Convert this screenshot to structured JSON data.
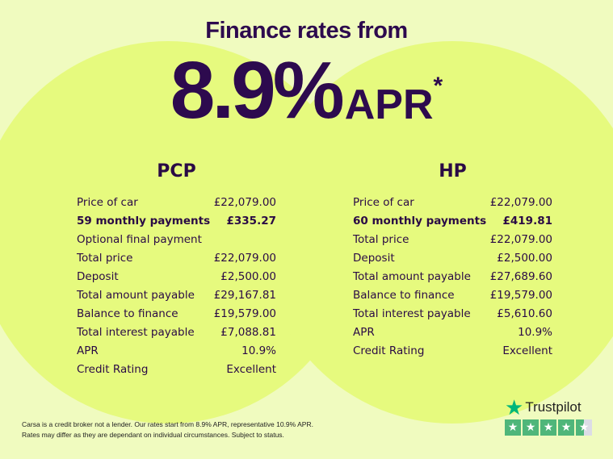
{
  "header": {
    "subtitle": "Finance rates from",
    "rate": "8.9%",
    "apr": "APR",
    "asterisk": "*"
  },
  "pcp": {
    "title": "PCP",
    "rows": [
      {
        "label": "Price of car",
        "value": "£22,079.00",
        "bold": false
      },
      {
        "label": "59 monthly payments",
        "value": "£335.27",
        "bold": true
      },
      {
        "label": "Optional final payment",
        "value": "",
        "bold": false
      },
      {
        "label": "Total price",
        "value": "£22,079.00",
        "bold": false
      },
      {
        "label": "Deposit",
        "value": "£2,500.00",
        "bold": false
      },
      {
        "label": "Total amount payable",
        "value": "£29,167.81",
        "bold": false
      },
      {
        "label": "Balance to finance",
        "value": "£19,579.00",
        "bold": false
      },
      {
        "label": "Total interest payable",
        "value": "£7,088.81",
        "bold": false
      },
      {
        "label": "APR",
        "value": "10.9%",
        "bold": false
      },
      {
        "label": "Credit Rating",
        "value": "Excellent",
        "bold": false
      }
    ]
  },
  "hp": {
    "title": "HP",
    "rows": [
      {
        "label": "Price of car",
        "value": "£22,079.00",
        "bold": false
      },
      {
        "label": "60 monthly payments",
        "value": "£419.81",
        "bold": true
      },
      {
        "label": "Total price",
        "value": "£22,079.00",
        "bold": false
      },
      {
        "label": "Deposit",
        "value": "£2,500.00",
        "bold": false
      },
      {
        "label": "Total amount payable",
        "value": "£27,689.60",
        "bold": false
      },
      {
        "label": "Balance to finance",
        "value": "£19,579.00",
        "bold": false
      },
      {
        "label": "Total interest payable",
        "value": "£5,610.60",
        "bold": false
      },
      {
        "label": "APR",
        "value": "10.9%",
        "bold": false
      },
      {
        "label": "Credit Rating",
        "value": "Excellent",
        "bold": false
      }
    ]
  },
  "disclaimer": {
    "line1": "Carsa is a credit broker not a lender. Our rates start from 8.9% APR, representative 10.9% APR.",
    "line2": "Rates may differ as they are dependant on individual circumstances. Subject to status."
  },
  "trustpilot": {
    "name": "Trustpilot",
    "rating_stars": 4.5,
    "icon": "star-icon"
  },
  "colors": {
    "background": "#f0fbbf",
    "circle": "#e6fa7e",
    "text": "#2d0a4e",
    "trustpilot": "#00b67a"
  }
}
